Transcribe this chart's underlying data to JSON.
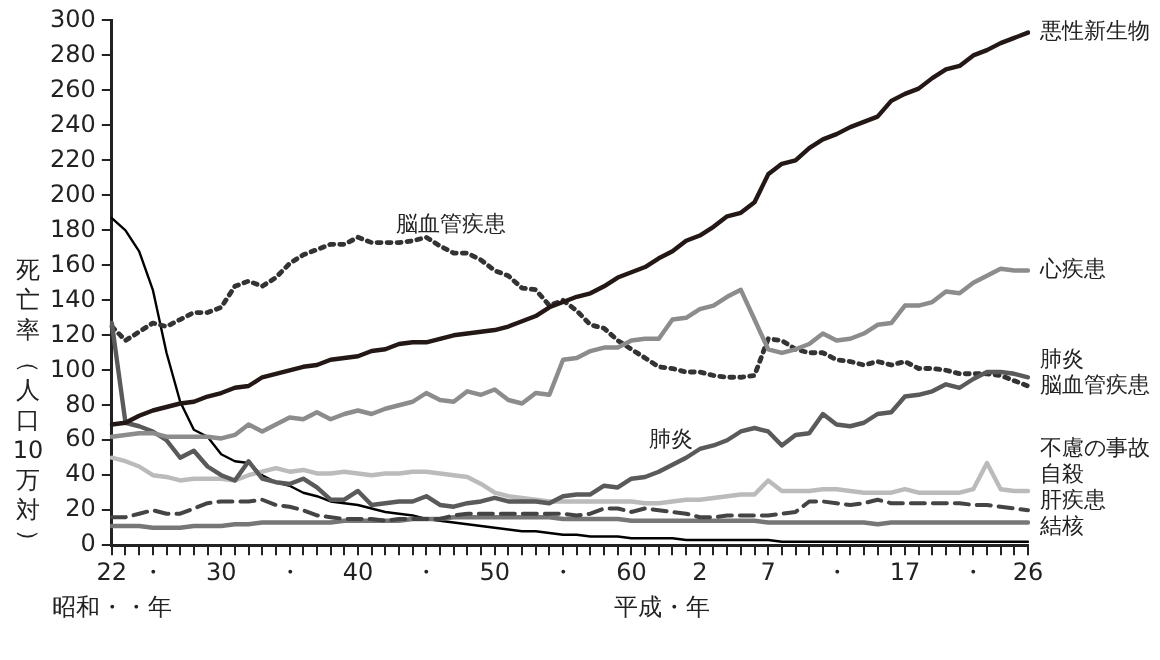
{
  "chart_data": {
    "type": "line",
    "xlabel": "昭和・・年",
    "ylabel": "死亡率（人口10万対）",
    "annotations": [
      "脳血管疾患",
      "肺炎",
      "平成・年"
    ],
    "categories": [
      "22",
      null,
      null,
      "・",
      null,
      null,
      null,
      null,
      "30",
      null,
      null,
      null,
      null,
      "・",
      null,
      null,
      null,
      null,
      "40",
      null,
      null,
      null,
      null,
      "・",
      null,
      null,
      null,
      null,
      "50",
      null,
      null,
      null,
      null,
      "・",
      null,
      null,
      null,
      null,
      "60",
      null,
      null,
      null,
      null,
      "2",
      null,
      null,
      null,
      null,
      "7",
      null,
      null,
      null,
      null,
      "・",
      null,
      null,
      null,
      null,
      "17",
      null,
      null,
      null,
      null,
      "・",
      null,
      null,
      null,
      "26"
    ],
    "ylim": [
      0,
      300
    ],
    "yticks": [
      0,
      20,
      40,
      60,
      80,
      100,
      120,
      140,
      160,
      180,
      200,
      220,
      240,
      260,
      280,
      300
    ],
    "grid": false,
    "legend": false,
    "marker": "none",
    "series": [
      {
        "name": "悪性新生物",
        "color": "#231815",
        "line_style": "solid",
        "values": [
          69,
          70,
          74,
          77,
          79,
          81,
          82,
          85,
          87,
          90,
          91,
          96,
          98,
          100,
          102,
          103,
          106,
          107,
          108,
          111,
          112,
          115,
          116,
          116,
          118,
          120,
          121,
          122,
          123,
          125,
          128,
          131,
          136,
          139,
          142,
          144,
          148,
          153,
          156,
          159,
          164,
          168,
          174,
          177,
          182,
          188,
          190,
          196,
          212,
          218,
          220,
          227,
          232,
          235,
          239,
          242,
          245,
          254,
          258,
          261,
          267,
          272,
          274,
          280,
          283,
          287,
          290,
          293
        ]
      },
      {
        "name": "心疾患",
        "color": "#8c8c8c",
        "line_style": "solid",
        "values": [
          62,
          63,
          64,
          64,
          62,
          62,
          62,
          62,
          61,
          63,
          69,
          65,
          69,
          73,
          72,
          76,
          72,
          75,
          77,
          75,
          78,
          80,
          82,
          87,
          83,
          82,
          88,
          86,
          89,
          83,
          81,
          87,
          86,
          106,
          107,
          111,
          113,
          113,
          117,
          118,
          118,
          129,
          130,
          135,
          137,
          142,
          146,
          129,
          112,
          110,
          112,
          115,
          121,
          117,
          118,
          121,
          126,
          127,
          137,
          137,
          139,
          145,
          144,
          150,
          154,
          158,
          157,
          157
        ]
      },
      {
        "name": "肺炎",
        "color": "#5a5a5a",
        "line_style": "solid",
        "values": [
          127,
          70,
          68,
          65,
          60,
          50,
          54,
          45,
          40,
          37,
          48,
          38,
          36,
          35,
          38,
          33,
          26,
          26,
          31,
          23,
          24,
          25,
          25,
          28,
          23,
          22,
          24,
          25,
          27,
          25,
          25,
          25,
          24,
          28,
          29,
          29,
          34,
          33,
          38,
          39,
          42,
          46,
          50,
          55,
          57,
          60,
          65,
          67,
          65,
          57,
          63,
          64,
          75,
          69,
          68,
          70,
          75,
          76,
          85,
          86,
          88,
          92,
          90,
          95,
          99,
          99,
          98,
          96
        ]
      },
      {
        "name": "脳血管疾患",
        "color": "#333333",
        "line_style": "dotted",
        "values": [
          125,
          117,
          122,
          127,
          125,
          129,
          133,
          133,
          136,
          148,
          151,
          148,
          153,
          161,
          166,
          169,
          172,
          172,
          176,
          173,
          173,
          173,
          174,
          176,
          171,
          167,
          167,
          163,
          157,
          154,
          147,
          146,
          137,
          140,
          134,
          126,
          124,
          117,
          112,
          107,
          102,
          101,
          99,
          99,
          97,
          96,
          96,
          97,
          118,
          117,
          112,
          110,
          110,
          106,
          105,
          103,
          105,
          103,
          105,
          101,
          101,
          100,
          98,
          98,
          98,
          97,
          94,
          91
        ]
      },
      {
        "name": "不慮の事故",
        "color": "#bbbbbb",
        "line_style": "solid",
        "values": [
          50,
          48,
          45,
          40,
          39,
          37,
          38,
          38,
          38,
          37,
          40,
          42,
          44,
          42,
          43,
          41,
          41,
          42,
          41,
          40,
          41,
          41,
          42,
          42,
          41,
          40,
          39,
          35,
          30,
          28,
          27,
          26,
          25,
          25,
          25,
          25,
          25,
          25,
          25,
          24,
          24,
          25,
          26,
          26,
          27,
          28,
          29,
          29,
          37,
          31,
          31,
          31,
          32,
          32,
          31,
          30,
          30,
          30,
          32,
          30,
          30,
          30,
          30,
          32,
          47,
          32,
          31,
          31
        ]
      },
      {
        "name": "自殺",
        "color": "#444444",
        "line_style": "dashed",
        "values": [
          16,
          16,
          18,
          20,
          18,
          18,
          21,
          24,
          25,
          25,
          25,
          26,
          23,
          22,
          20,
          17,
          16,
          15,
          15,
          15,
          14,
          15,
          15,
          15,
          15,
          17,
          18,
          18,
          18,
          18,
          18,
          18,
          18,
          18,
          17,
          18,
          21,
          21,
          19,
          21,
          20,
          19,
          18,
          16,
          16,
          17,
          17,
          17,
          17,
          18,
          19,
          25,
          25,
          24,
          23,
          24,
          26,
          24,
          24,
          24,
          24,
          24,
          24,
          23,
          23,
          22,
          21,
          20
        ]
      },
      {
        "name": "肝疾患",
        "color": "#777777",
        "line_style": "solid",
        "values": [
          11,
          11,
          11,
          10,
          10,
          10,
          11,
          11,
          11,
          12,
          12,
          13,
          13,
          13,
          13,
          13,
          13,
          14,
          14,
          14,
          14,
          14,
          15,
          15,
          15,
          16,
          16,
          16,
          16,
          16,
          16,
          16,
          16,
          15,
          15,
          15,
          15,
          15,
          14,
          14,
          14,
          14,
          14,
          14,
          14,
          14,
          14,
          14,
          13,
          13,
          13,
          13,
          13,
          13,
          13,
          13,
          12,
          13,
          13,
          13,
          13,
          13,
          13,
          13,
          13,
          13,
          13,
          13
        ]
      },
      {
        "name": "結核",
        "color": "#000000",
        "line_style": "solid",
        "values": [
          187,
          180,
          168,
          146,
          110,
          82,
          66,
          62,
          52,
          48,
          47,
          40,
          36,
          34,
          30,
          28,
          25,
          24,
          23,
          21,
          19,
          18,
          17,
          15,
          14,
          13,
          12,
          11,
          10,
          9,
          8,
          8,
          7,
          6,
          6,
          5,
          5,
          5,
          4,
          4,
          4,
          4,
          3,
          3,
          3,
          3,
          3,
          3,
          3,
          2,
          2,
          2,
          2,
          2,
          2,
          2,
          2,
          2,
          2,
          2,
          2,
          2,
          2,
          2,
          2,
          2,
          2,
          2
        ]
      }
    ]
  }
}
